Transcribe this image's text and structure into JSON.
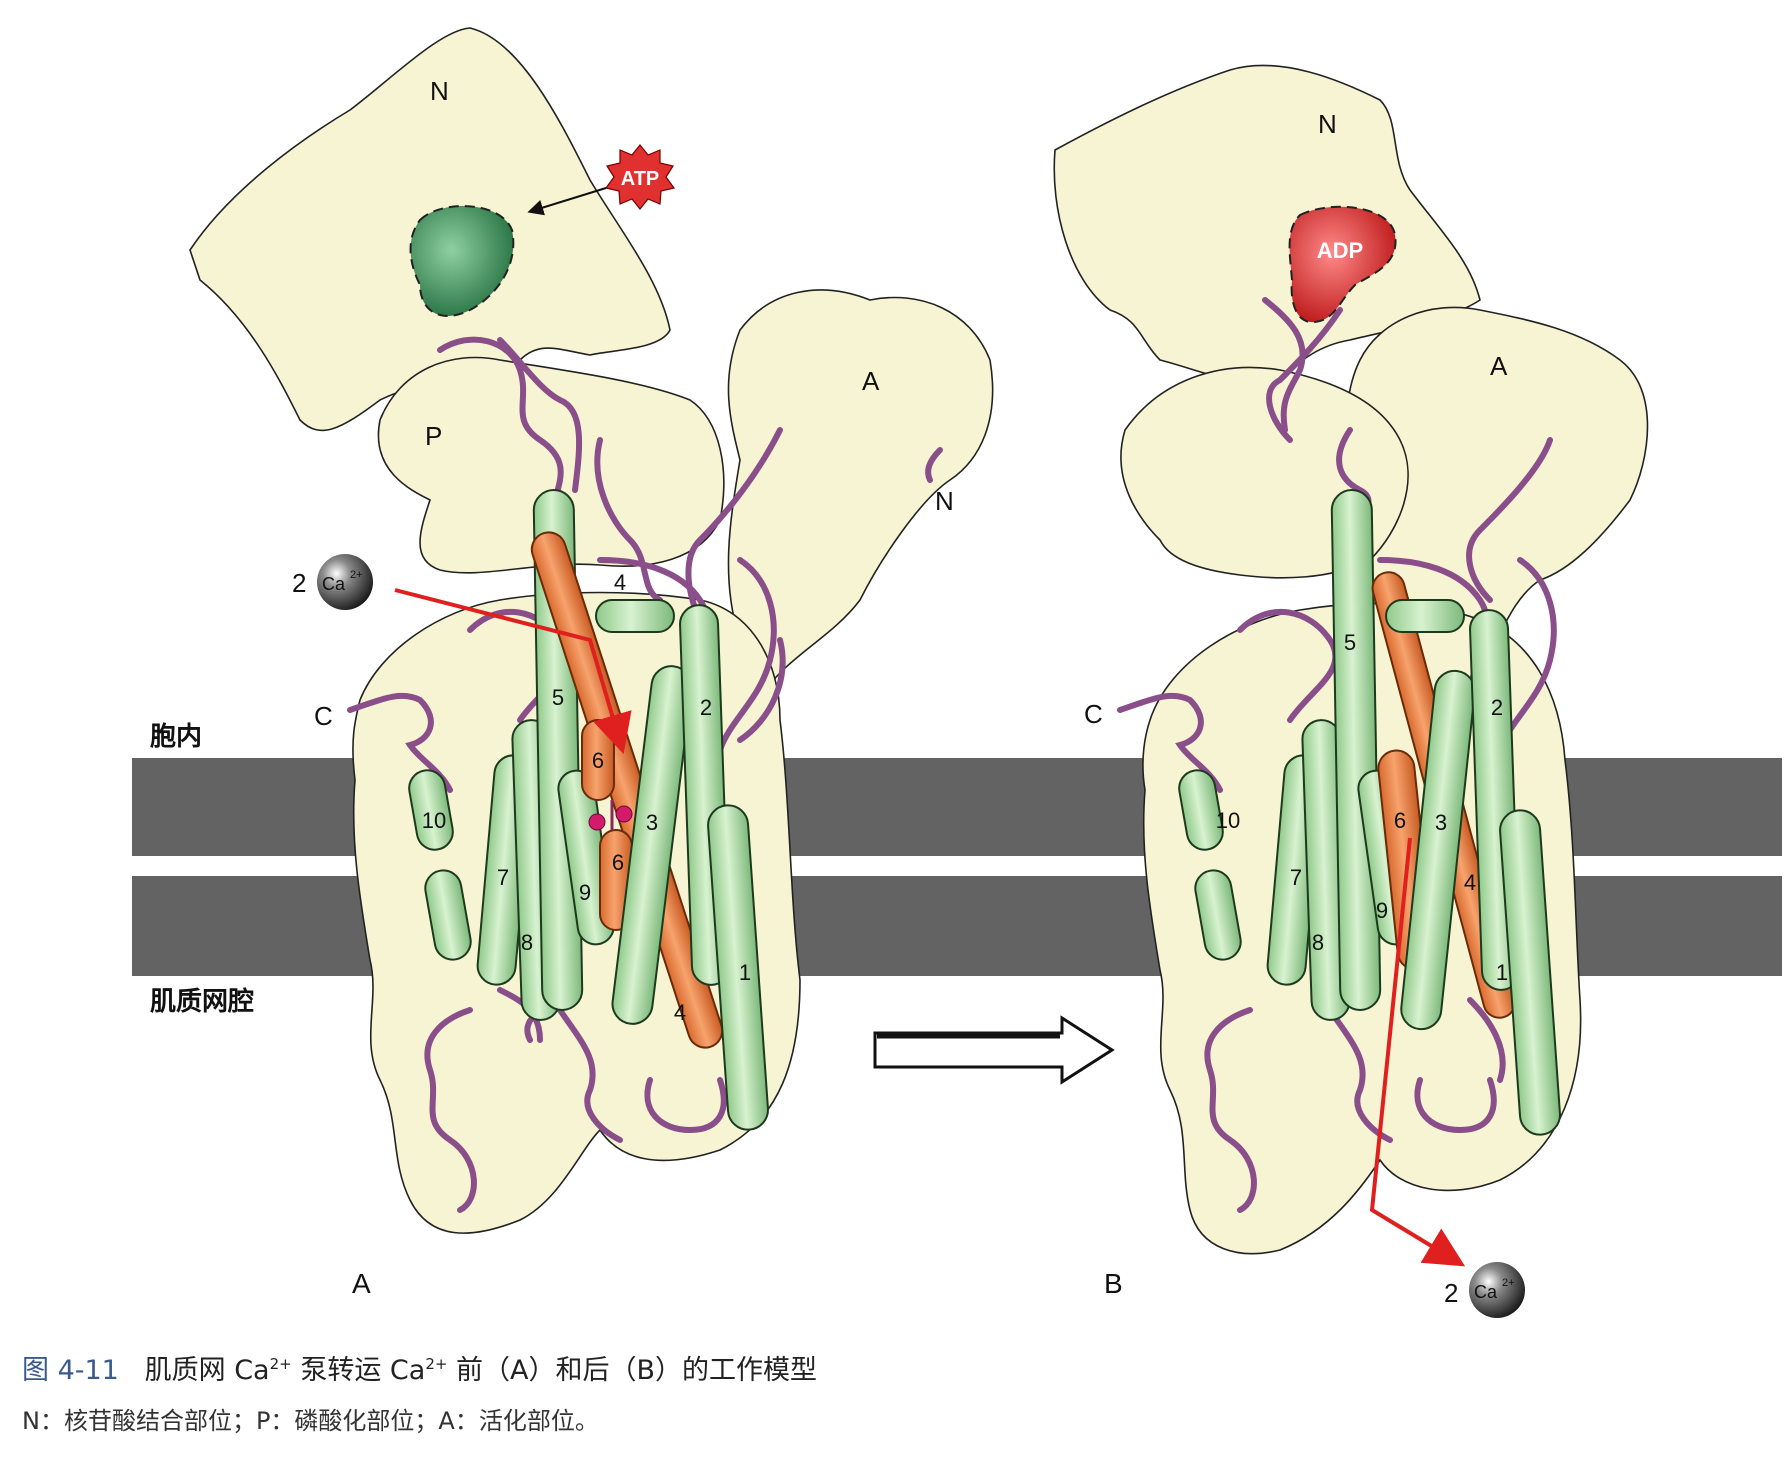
{
  "colors": {
    "domain_fill": "#f7f4d3",
    "membrane": "#636363",
    "helix_green": "#bfe5b6",
    "helix_orange": "#ec8a4d",
    "loop_purple": "#8a4f8a",
    "arrow_red": "#e01f1f",
    "atp_red": "#e03030",
    "pocket_green": "#2f8a4f",
    "caption_blue": "#3a5a8c"
  },
  "panel_a": {
    "label": "A",
    "domain_n": "N",
    "domain_p": "P",
    "domain_a": "A",
    "n_terminus": "N",
    "c_terminus": "C",
    "atp": "ATP",
    "calcium_count": "2",
    "calcium_ion": "Ca",
    "calcium_charge": "2+",
    "helices": [
      "1",
      "2",
      "3",
      "4",
      "4",
      "5",
      "6",
      "6",
      "7",
      "8",
      "9",
      "10"
    ]
  },
  "panel_b": {
    "label": "B",
    "domain_n": "N",
    "domain_a": "A",
    "c_terminus": "C",
    "adp": "ADP",
    "calcium_count": "2",
    "calcium_ion": "Ca",
    "calcium_charge": "2+",
    "helices": [
      "1",
      "2",
      "3",
      "4",
      "5",
      "6",
      "7",
      "8",
      "9",
      "10"
    ]
  },
  "membrane": {
    "cytosol_label": "胞内",
    "lumen_label": "肌质网腔"
  },
  "caption": {
    "figure_number": "图 4-11",
    "title_part1": "肌质网 Ca",
    "title_sup1": "2+",
    "title_part2": " 泵转运 Ca",
    "title_sup2": "2+",
    "title_part3": " 前（A）和后（B）的工作模型",
    "legend": "N：核苷酸结合部位；P：磷酸化部位；A：活化部位。"
  }
}
